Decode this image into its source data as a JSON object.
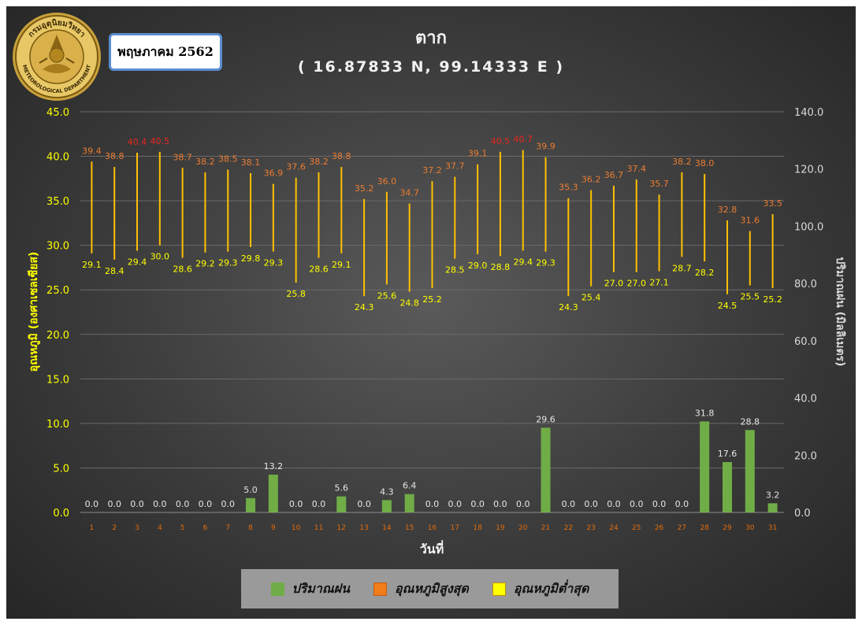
{
  "header": {
    "month_label": "พฤษภาคม 2562",
    "title": "ตาก",
    "coordinates": "( 16.87833 N, 99.14333 E )"
  },
  "chart_data": {
    "type": "bar+range",
    "days": [
      1,
      2,
      3,
      4,
      5,
      6,
      7,
      8,
      9,
      10,
      11,
      12,
      13,
      14,
      15,
      16,
      17,
      18,
      19,
      20,
      21,
      22,
      23,
      24,
      25,
      26,
      27,
      28,
      29,
      30,
      31
    ],
    "series": [
      {
        "name": "ปริมาณฝน",
        "type": "bar",
        "axis": "right",
        "values": [
          0.0,
          0.0,
          0.0,
          0.0,
          0.0,
          0.0,
          0.0,
          5.0,
          13.2,
          0.0,
          0.0,
          5.6,
          0.0,
          4.3,
          6.4,
          0.0,
          0.0,
          0.0,
          0.0,
          0.0,
          29.6,
          0.0,
          0.0,
          0.0,
          0.0,
          0.0,
          0.0,
          31.8,
          17.6,
          28.8,
          3.2
        ]
      },
      {
        "name": "อุณหภูมิสูงสุด",
        "type": "range-high",
        "axis": "left",
        "values": [
          39.4,
          38.8,
          40.4,
          40.5,
          38.7,
          38.2,
          38.5,
          38.1,
          36.9,
          37.6,
          38.2,
          38.8,
          35.2,
          36.0,
          34.7,
          37.2,
          37.7,
          39.1,
          40.5,
          40.7,
          39.9,
          35.3,
          36.2,
          36.7,
          37.4,
          35.7,
          38.2,
          38.0,
          32.8,
          31.6,
          33.5
        ]
      },
      {
        "name": "อุณหภูมิต่ำสุด",
        "type": "range-low",
        "axis": "left",
        "values": [
          29.1,
          28.4,
          29.4,
          30.0,
          28.6,
          29.2,
          29.3,
          29.8,
          29.3,
          25.8,
          28.6,
          29.1,
          24.3,
          25.6,
          24.8,
          25.2,
          28.5,
          29.0,
          28.8,
          29.4,
          29.3,
          24.3,
          25.4,
          27.0,
          27.0,
          27.1,
          28.7,
          28.2,
          24.5,
          25.5,
          25.2
        ]
      }
    ],
    "left_axis": {
      "label": "อุณหภูมิ (องศาเซลเซียส)",
      "min": 0,
      "max": 45,
      "ticks": [
        "0.0",
        "5.0",
        "10.0",
        "15.0",
        "20.0",
        "25.0",
        "30.0",
        "35.0",
        "40.0",
        "45.0"
      ]
    },
    "right_axis": {
      "label": "ปริมาณฝน (มิลลิเมตร)",
      "min": 0,
      "max": 140,
      "ticks": [
        "0.0",
        "20.0",
        "40.0",
        "60.0",
        "80.0",
        "100.0",
        "120.0",
        "140.0"
      ]
    },
    "xlabel": "วันที่",
    "hot_threshold": 40.0,
    "grid": true,
    "legend_position": "bottom",
    "colors": {
      "rain": "#70ad47",
      "high_line": "#ffc000",
      "high_label": "#ed7d31",
      "high_label_hot": "#e8261d",
      "low_label": "#ffff00",
      "left_axis": "#ffff00",
      "right_axis": "#d9d9d9",
      "xtick": "#e46c0a",
      "legend_high_swatch": "#f07d1a",
      "legend_low_swatch": "#ffff00"
    }
  },
  "legend": {
    "rain_label": "ปริมาณฝน",
    "high_label": "อุณหภูมิสูงสุด",
    "low_label": "อุณหภูมิต่ำสุด"
  },
  "logo": {
    "text_top": "กรมอุตุนิยมวิทยา",
    "text_bottom": "METEOROLOGICAL DEPARTMENT"
  }
}
